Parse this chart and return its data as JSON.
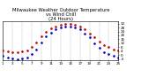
{
  "title": "Milwaukee Weather Outdoor Temperature\nvs Wind Chill\n(24 Hours)",
  "x_outdoor": [
    1,
    2,
    3,
    4,
    5,
    6,
    7,
    8,
    9,
    10,
    11,
    12,
    13,
    14,
    15,
    16,
    17,
    18,
    19,
    20,
    21,
    22,
    23,
    24,
    25
  ],
  "y_outdoor": [
    5,
    4,
    3,
    3,
    4,
    5,
    8,
    13,
    19,
    24,
    27,
    29,
    31,
    32,
    32,
    31,
    29,
    26,
    22,
    18,
    14,
    10,
    8,
    6,
    5
  ],
  "x_windchill": [
    1,
    2,
    3,
    4,
    5,
    6,
    7,
    8,
    9,
    10,
    11,
    12,
    13,
    14,
    15,
    16,
    17,
    18,
    19,
    20,
    21,
    22,
    23,
    24,
    25
  ],
  "y_windchill": [
    -1,
    -2,
    -3,
    -4,
    -3,
    -2,
    1,
    6,
    13,
    19,
    23,
    26,
    28,
    29,
    29,
    28,
    26,
    22,
    18,
    12,
    7,
    3,
    1,
    -1,
    -2
  ],
  "color_outdoor": "#cc0000",
  "color_windchill": "#0000cc",
  "xlim": [
    1,
    25
  ],
  "ylim": [
    -5,
    34
  ],
  "xticks": [
    1,
    3,
    5,
    7,
    9,
    11,
    13,
    15,
    17,
    19,
    21,
    23,
    25
  ],
  "yticks": [
    -4,
    0,
    4,
    8,
    12,
    16,
    20,
    24,
    28,
    32
  ],
  "ytick_labels": [
    "-4",
    "0",
    "4",
    "8",
    "12",
    "16",
    "20",
    "24",
    "28",
    "32"
  ],
  "grid_color": "#999999",
  "bg_color": "#ffffff",
  "title_fontsize": 3.8,
  "tick_fontsize": 3.0,
  "marker_size": 1.8
}
